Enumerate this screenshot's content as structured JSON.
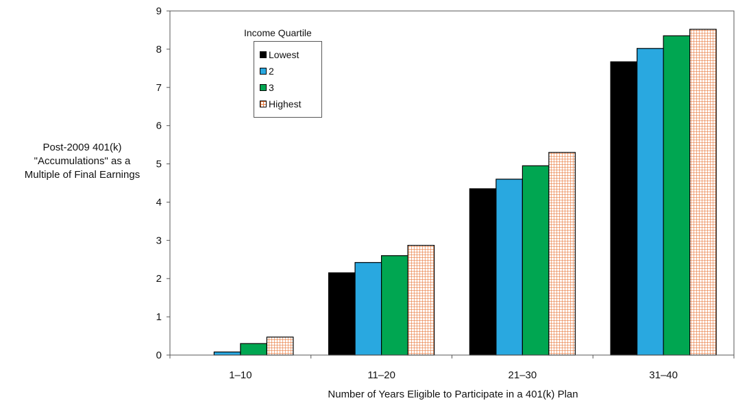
{
  "chart_data": {
    "type": "bar",
    "categories": [
      "1–10",
      "11–20",
      "21–30",
      "31–40"
    ],
    "series": [
      {
        "name": "Lowest",
        "values": [
          0.0,
          2.15,
          4.35,
          7.67
        ],
        "color": "#000000",
        "pattern": "solid"
      },
      {
        "name": "2",
        "values": [
          0.08,
          2.42,
          4.6,
          8.02
        ],
        "color": "#29a8e0",
        "pattern": "solid"
      },
      {
        "name": "3",
        "values": [
          0.3,
          2.6,
          4.95,
          8.35
        ],
        "color": "#00a651",
        "pattern": "solid"
      },
      {
        "name": "Highest",
        "values": [
          0.47,
          2.87,
          5.3,
          8.52
        ],
        "color": "#e8773a",
        "pattern": "grid"
      }
    ],
    "ylim": [
      0,
      9
    ],
    "yticks": [
      "0",
      "1",
      "2",
      "3",
      "4",
      "5",
      "6",
      "7",
      "8",
      "9"
    ],
    "ylabel_lines": [
      "Post-2009 401(k)",
      "\"Accumulations\" as a",
      "Multiple of Final Earnings"
    ],
    "xlabel": "Number of Years Eligible to Participate in a 401(k) Plan",
    "legend": {
      "title": "Income Quartile",
      "placement": "top-left"
    },
    "grid": false
  }
}
